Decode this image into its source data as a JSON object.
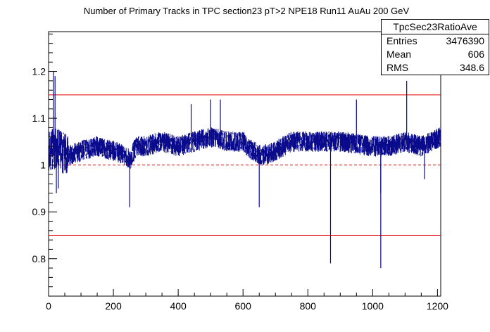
{
  "chart_data": {
    "type": "line",
    "title": "Number of Primary Tracks in TPC section23 pT>2 NPE18 Run11 AuAu 200 GeV",
    "xlim": [
      0,
      1210
    ],
    "ylim": [
      0.72,
      1.285
    ],
    "x_ticks": [
      "0",
      "200",
      "400",
      "600",
      "800",
      "1000",
      "1200"
    ],
    "y_ticks": [
      "0.8",
      "0.9",
      "1",
      "1.1",
      "1.2"
    ],
    "reference_lines": [
      {
        "y": 1.15,
        "style": "solid",
        "color": "#e00000"
      },
      {
        "y": 1.0,
        "style": "dashed",
        "color": "#e00000"
      },
      {
        "y": 0.85,
        "style": "solid",
        "color": "#e00000"
      }
    ],
    "series": [
      {
        "color": "#0a0a8c",
        "baseline": [
          [
            0,
            1.03
          ],
          [
            20,
            1.035
          ],
          [
            60,
            1.02
          ],
          [
            100,
            1.03
          ],
          [
            150,
            1.04
          ],
          [
            200,
            1.03
          ],
          [
            240,
            1.02
          ],
          [
            250,
            1.01
          ],
          [
            270,
            1.04
          ],
          [
            300,
            1.04
          ],
          [
            350,
            1.05
          ],
          [
            400,
            1.04
          ],
          [
            450,
            1.05
          ],
          [
            500,
            1.06
          ],
          [
            550,
            1.05
          ],
          [
            600,
            1.05
          ],
          [
            630,
            1.03
          ],
          [
            660,
            1.02
          ],
          [
            700,
            1.03
          ],
          [
            750,
            1.05
          ],
          [
            800,
            1.05
          ],
          [
            900,
            1.05
          ],
          [
            1000,
            1.04
          ],
          [
            1050,
            1.04
          ],
          [
            1100,
            1.05
          ],
          [
            1150,
            1.04
          ],
          [
            1180,
            1.05
          ],
          [
            1210,
            1.06
          ]
        ],
        "spikes": [
          [
            15,
            1.2
          ],
          [
            20,
            1.19
          ],
          [
            24,
            0.94
          ],
          [
            30,
            0.95
          ],
          [
            250,
            0.91
          ],
          [
            440,
            1.13
          ],
          [
            500,
            1.14
          ],
          [
            530,
            1.14
          ],
          [
            650,
            0.91
          ],
          [
            870,
            0.79
          ],
          [
            950,
            1.14
          ],
          [
            1025,
            0.78
          ],
          [
            1025,
            0.94
          ],
          [
            1105,
            1.18
          ],
          [
            1160,
            0.97
          ]
        ]
      }
    ],
    "stats_box": {
      "name": "TpcSec23RatioAve",
      "entries_label": "Entries",
      "entries_value": "3476390",
      "mean_label": "Mean",
      "mean_value": "606",
      "rms_label": "RMS",
      "rms_value": "348.6"
    }
  }
}
